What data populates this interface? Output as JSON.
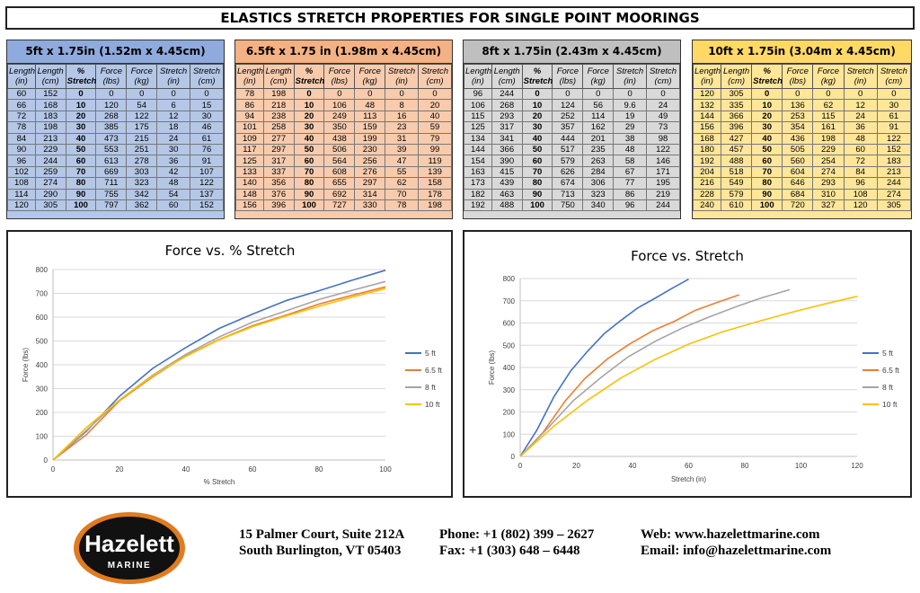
{
  "page": {
    "title": "ELASTICS STRETCH PROPERTIES FOR SINGLE POINT MOORINGS"
  },
  "column_headers": [
    "Length (in)",
    "Length (cm)",
    "% Stretch",
    "Force (lbs)",
    "Force (kg)",
    "Stretch (in)",
    "Stretch (cm)"
  ],
  "tables": [
    {
      "title": "5ft x 1.75in (1.52m x 4.45cm)",
      "bg": "#b4c7e7",
      "header_bg": "#8faadc",
      "rows": [
        [
          "60",
          "152",
          "0",
          "0",
          "0",
          "0",
          "0"
        ],
        [
          "66",
          "168",
          "10",
          "120",
          "54",
          "6",
          "15"
        ],
        [
          "72",
          "183",
          "20",
          "268",
          "122",
          "12",
          "30"
        ],
        [
          "78",
          "198",
          "30",
          "385",
          "175",
          "18",
          "46"
        ],
        [
          "84",
          "213",
          "40",
          "473",
          "215",
          "24",
          "61"
        ],
        [
          "90",
          "229",
          "50",
          "553",
          "251",
          "30",
          "76"
        ],
        [
          "96",
          "244",
          "60",
          "613",
          "278",
          "36",
          "91"
        ],
        [
          "102",
          "259",
          "70",
          "669",
          "303",
          "42",
          "107"
        ],
        [
          "108",
          "274",
          "80",
          "711",
          "323",
          "48",
          "122"
        ],
        [
          "114",
          "290",
          "90",
          "755",
          "342",
          "54",
          "137"
        ],
        [
          "120",
          "305",
          "100",
          "797",
          "362",
          "60",
          "152"
        ]
      ]
    },
    {
      "title": "6.5ft x 1.75 in (1.98m x 4.45cm)",
      "bg": "#f8cbad",
      "header_bg": "#f4b183",
      "rows": [
        [
          "78",
          "198",
          "0",
          "0",
          "0",
          "0",
          "0"
        ],
        [
          "86",
          "218",
          "10",
          "106",
          "48",
          "8",
          "20"
        ],
        [
          "94",
          "238",
          "20",
          "249",
          "113",
          "16",
          "40"
        ],
        [
          "101",
          "258",
          "30",
          "350",
          "159",
          "23",
          "59"
        ],
        [
          "109",
          "277",
          "40",
          "438",
          "199",
          "31",
          "79"
        ],
        [
          "117",
          "297",
          "50",
          "506",
          "230",
          "39",
          "99"
        ],
        [
          "125",
          "317",
          "60",
          "564",
          "256",
          "47",
          "119"
        ],
        [
          "133",
          "337",
          "70",
          "608",
          "276",
          "55",
          "139"
        ],
        [
          "140",
          "356",
          "80",
          "655",
          "297",
          "62",
          "158"
        ],
        [
          "148",
          "376",
          "90",
          "692",
          "314",
          "70",
          "178"
        ],
        [
          "156",
          "396",
          "100",
          "727",
          "330",
          "78",
          "198"
        ]
      ]
    },
    {
      "title": "8ft x 1.75in (2.43m x 4.45cm)",
      "bg": "#d9d9d9",
      "header_bg": "#bfbfbf",
      "rows": [
        [
          "96",
          "244",
          "0",
          "0",
          "0",
          "0",
          "0"
        ],
        [
          "106",
          "268",
          "10",
          "124",
          "56",
          "9.6",
          "24"
        ],
        [
          "115",
          "293",
          "20",
          "252",
          "114",
          "19",
          "49"
        ],
        [
          "125",
          "317",
          "30",
          "357",
          "162",
          "29",
          "73"
        ],
        [
          "134",
          "341",
          "40",
          "444",
          "201",
          "38",
          "98"
        ],
        [
          "144",
          "366",
          "50",
          "517",
          "235",
          "48",
          "122"
        ],
        [
          "154",
          "390",
          "60",
          "579",
          "263",
          "58",
          "146"
        ],
        [
          "163",
          "415",
          "70",
          "626",
          "284",
          "67",
          "171"
        ],
        [
          "173",
          "439",
          "80",
          "674",
          "306",
          "77",
          "195"
        ],
        [
          "182",
          "463",
          "90",
          "713",
          "323",
          "86",
          "219"
        ],
        [
          "192",
          "488",
          "100",
          "750",
          "340",
          "96",
          "244"
        ]
      ]
    },
    {
      "title": "10ft x 1.75in (3.04m x 4.45cm)",
      "bg": "#ffe699",
      "header_bg": "#ffd966",
      "rows": [
        [
          "120",
          "305",
          "0",
          "0",
          "0",
          "0",
          "0"
        ],
        [
          "132",
          "335",
          "10",
          "136",
          "62",
          "12",
          "30"
        ],
        [
          "144",
          "366",
          "20",
          "253",
          "115",
          "24",
          "61"
        ],
        [
          "156",
          "396",
          "30",
          "354",
          "161",
          "36",
          "91"
        ],
        [
          "168",
          "427",
          "40",
          "436",
          "198",
          "48",
          "122"
        ],
        [
          "180",
          "457",
          "50",
          "505",
          "229",
          "60",
          "152"
        ],
        [
          "192",
          "488",
          "60",
          "560",
          "254",
          "72",
          "183"
        ],
        [
          "204",
          "518",
          "70",
          "604",
          "274",
          "84",
          "213"
        ],
        [
          "216",
          "549",
          "80",
          "646",
          "293",
          "96",
          "244"
        ],
        [
          "228",
          "579",
          "90",
          "684",
          "310",
          "108",
          "274"
        ],
        [
          "240",
          "610",
          "100",
          "720",
          "327",
          "120",
          "305"
        ]
      ]
    }
  ],
  "chart_data": [
    {
      "type": "line",
      "title": "Force vs. % Stretch",
      "xlabel": "% Stretch",
      "ylabel": "Force (lbs)",
      "xlim": [
        0,
        100
      ],
      "ylim": [
        0,
        800
      ],
      "xticks": [
        0,
        20,
        40,
        60,
        80,
        100
      ],
      "yticks": [
        0,
        100,
        200,
        300,
        400,
        500,
        600,
        700,
        800
      ],
      "grid": "horizontal",
      "legend": "right",
      "series": [
        {
          "name": "5 ft",
          "color": "#4472c4",
          "x": [
            0,
            10,
            20,
            30,
            40,
            50,
            60,
            70,
            80,
            90,
            100
          ],
          "y": [
            0,
            120,
            268,
            385,
            473,
            553,
            613,
            669,
            711,
            755,
            797
          ]
        },
        {
          "name": "6.5 ft",
          "color": "#ed7d31",
          "x": [
            0,
            10,
            20,
            30,
            40,
            50,
            60,
            70,
            80,
            90,
            100
          ],
          "y": [
            0,
            106,
            249,
            350,
            438,
            506,
            564,
            608,
            655,
            692,
            727
          ]
        },
        {
          "name": "8 ft",
          "color": "#a5a5a5",
          "x": [
            0,
            10,
            20,
            30,
            40,
            50,
            60,
            70,
            80,
            90,
            100
          ],
          "y": [
            0,
            124,
            252,
            357,
            444,
            517,
            579,
            626,
            674,
            713,
            750
          ]
        },
        {
          "name": "10 ft",
          "color": "#ffc000",
          "x": [
            0,
            10,
            20,
            30,
            40,
            50,
            60,
            70,
            80,
            90,
            100
          ],
          "y": [
            0,
            136,
            253,
            354,
            436,
            505,
            560,
            604,
            646,
            684,
            720
          ]
        }
      ]
    },
    {
      "type": "line",
      "title": "Force vs. Stretch",
      "xlabel": "Stretch (in)",
      "ylabel": "Force (lbs)",
      "xlim": [
        0,
        120
      ],
      "ylim": [
        0,
        800
      ],
      "xticks": [
        0,
        20,
        40,
        60,
        80,
        100,
        120
      ],
      "yticks": [
        0,
        100,
        200,
        300,
        400,
        500,
        600,
        700,
        800
      ],
      "grid": "horizontal",
      "legend": "right",
      "series": [
        {
          "name": "5 ft",
          "color": "#4472c4",
          "x": [
            0,
            6,
            12,
            18,
            24,
            30,
            36,
            42,
            48,
            54,
            60
          ],
          "y": [
            0,
            120,
            268,
            385,
            473,
            553,
            613,
            669,
            711,
            755,
            797
          ]
        },
        {
          "name": "6.5 ft",
          "color": "#ed7d31",
          "x": [
            0,
            8,
            16,
            23,
            31,
            39,
            47,
            55,
            62,
            70,
            78
          ],
          "y": [
            0,
            106,
            249,
            350,
            438,
            506,
            564,
            608,
            655,
            692,
            727
          ]
        },
        {
          "name": "8 ft",
          "color": "#a5a5a5",
          "x": [
            0,
            9.6,
            19,
            29,
            38,
            48,
            58,
            67,
            77,
            86,
            96
          ],
          "y": [
            0,
            124,
            252,
            357,
            444,
            517,
            579,
            626,
            674,
            713,
            750
          ]
        },
        {
          "name": "10 ft",
          "color": "#ffc000",
          "x": [
            0,
            12,
            24,
            36,
            48,
            60,
            72,
            84,
            96,
            108,
            120
          ],
          "y": [
            0,
            136,
            253,
            354,
            436,
            505,
            560,
            604,
            646,
            684,
            720
          ]
        }
      ]
    }
  ],
  "footer": {
    "logo_name": "Hazelett",
    "logo_sub": "MARINE",
    "address_line1": "15 Palmer Court, Suite 212A",
    "address_line2": "South Burlington, VT 05403",
    "phone": "Phone: +1 (802) 399 – 2627",
    "fax": "Fax: +1 (303) 648 – 6448",
    "web": "Web: www.hazelettmarine.com",
    "email": "Email: info@hazelettmarine.com"
  }
}
